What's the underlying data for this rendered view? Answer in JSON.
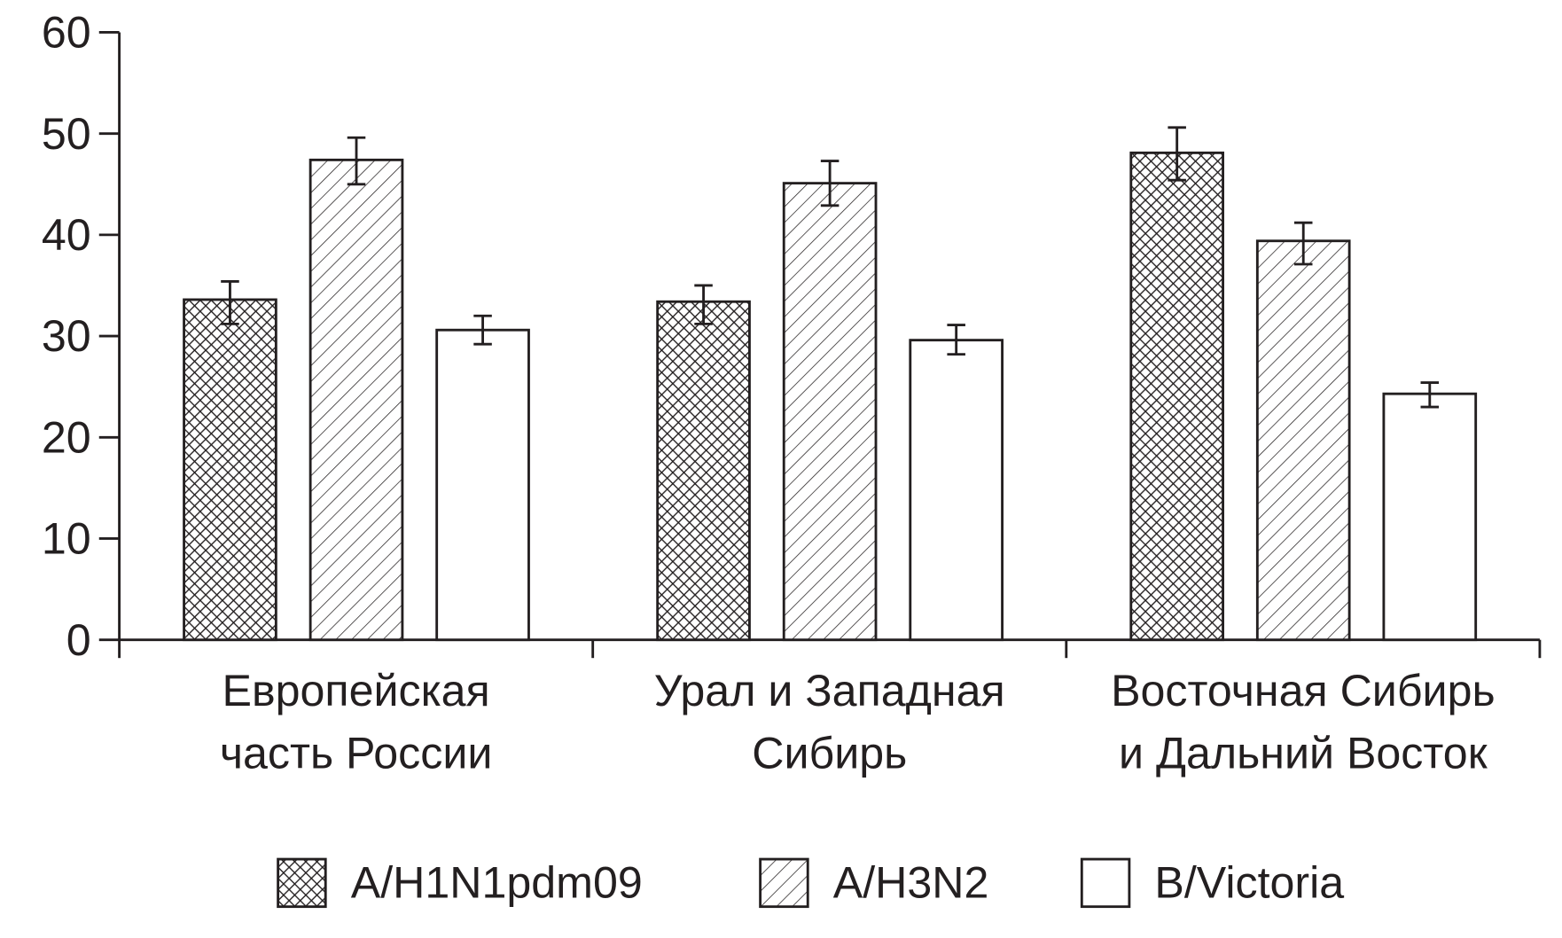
{
  "chart_data": {
    "type": "bar",
    "title": "",
    "xlabel": "",
    "ylabel": "",
    "ylim": [
      0,
      60
    ],
    "yticks": [
      "0",
      "10",
      "20",
      "30",
      "40",
      "50",
      "60"
    ],
    "categories": [
      [
        "Европейская",
        "часть России"
      ],
      [
        "Урал и Западная",
        "Сибирь"
      ],
      [
        "Восточная Сибирь",
        "и Дальний Восток"
      ]
    ],
    "series": [
      {
        "name": "A/H1N1pdm09",
        "pattern": "crosshatch",
        "values": [
          33.6,
          33.4,
          48.1
        ],
        "err_low": [
          31.2,
          31.2,
          45.4
        ],
        "err_high": [
          35.4,
          35.0,
          50.6
        ]
      },
      {
        "name": "A/H3N2",
        "pattern": "diagonal",
        "values": [
          47.4,
          45.1,
          39.4
        ],
        "err_low": [
          45.0,
          42.9,
          37.1
        ],
        "err_high": [
          49.6,
          47.3,
          41.2
        ]
      },
      {
        "name": "B/Victoria",
        "pattern": "none",
        "values": [
          30.6,
          29.6,
          24.3
        ],
        "err_low": [
          29.2,
          28.2,
          23.0
        ],
        "err_high": [
          32.0,
          31.1,
          25.4
        ]
      }
    ],
    "legend_position": "bottom",
    "grid": false,
    "colors": {
      "stroke": "#231f20",
      "fill": "#ffffff"
    }
  }
}
